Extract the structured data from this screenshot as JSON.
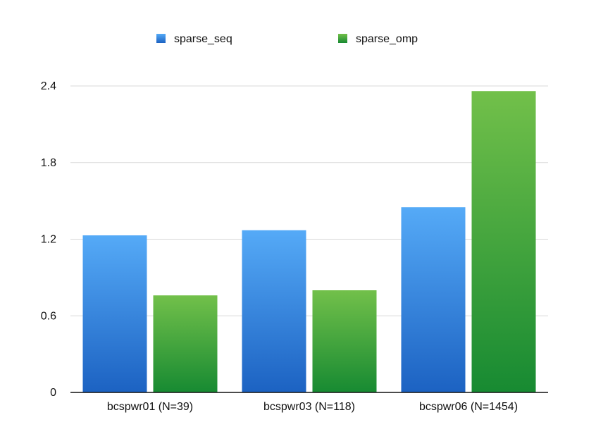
{
  "chart_data": {
    "type": "bar",
    "title": "",
    "xlabel": "",
    "ylabel": "",
    "categories": [
      "bcspwr01 (N=39)",
      "bcspwr03 (N=118)",
      "bcspwr06 (N=1454)"
    ],
    "series": [
      {
        "name": "sparse_seq",
        "values": [
          1.23,
          1.27,
          1.45
        ],
        "color": "#2a7fd6"
      },
      {
        "name": "sparse_omp",
        "values": [
          0.76,
          0.8,
          2.36
        ],
        "color": "#3aa640"
      }
    ],
    "ylim": [
      0,
      2.4
    ],
    "yticks": [
      "0",
      "0.6",
      "1.2",
      "1.8",
      "2.4"
    ],
    "grid": true,
    "legend_position": "top-center"
  }
}
